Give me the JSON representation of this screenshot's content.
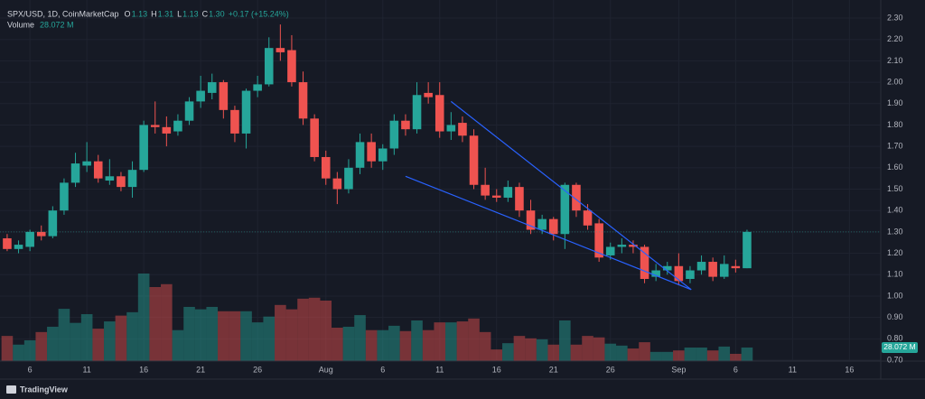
{
  "chart_data": {
    "type": "candlestick",
    "header": {
      "symbol": "SPX/USD, 1D, CoinMarketCap",
      "ohlc": [
        {
          "key": "O",
          "value": "1.13"
        },
        {
          "key": "H",
          "value": "1.31"
        },
        {
          "key": "L",
          "value": "1.13"
        },
        {
          "key": "C",
          "value": "1.30"
        }
      ],
      "change": "+0.17 (+15.24%)",
      "volume_title": "Volume"
    },
    "brand": "TradingView",
    "up_color": "#26a69a",
    "down_color": "#ef5350",
    "series": [
      {
        "name": "SPX/USD",
        "open": [
          1.27,
          1.22,
          1.23,
          1.3,
          1.28,
          1.4,
          1.53,
          1.61,
          1.63,
          1.54,
          1.56,
          1.51,
          1.59,
          1.8,
          1.79,
          1.77,
          1.82,
          1.91,
          1.95,
          2.0,
          1.87,
          1.76,
          1.96,
          1.99,
          2.16,
          2.15,
          2.0,
          1.83,
          1.65,
          1.55,
          1.5,
          1.6,
          1.72,
          1.63,
          1.69,
          1.82,
          1.78,
          1.95,
          1.94,
          1.77,
          1.81,
          1.75,
          1.52,
          1.47,
          1.46,
          1.51,
          1.4,
          1.31,
          1.36,
          1.29,
          1.52,
          1.4,
          1.34,
          1.19,
          1.23,
          1.24,
          1.23,
          1.09,
          1.12,
          1.14,
          1.08,
          1.12,
          1.16,
          1.09,
          1.14,
          1.13
        ],
        "high": [
          1.29,
          1.26,
          1.31,
          1.33,
          1.42,
          1.55,
          1.67,
          1.72,
          1.66,
          1.64,
          1.58,
          1.63,
          1.82,
          1.91,
          1.84,
          1.85,
          1.93,
          2.03,
          2.04,
          2.01,
          1.89,
          1.97,
          2.03,
          2.21,
          2.27,
          2.22,
          2.05,
          1.85,
          1.68,
          1.58,
          1.64,
          1.76,
          1.76,
          1.71,
          1.85,
          1.85,
          2.0,
          2.0,
          2.0,
          1.86,
          1.84,
          1.78,
          1.6,
          1.5,
          1.54,
          1.53,
          1.45,
          1.38,
          1.37,
          1.53,
          1.53,
          1.43,
          1.36,
          1.25,
          1.27,
          1.26,
          1.24,
          1.15,
          1.16,
          1.2,
          1.14,
          1.19,
          1.18,
          1.19,
          1.17,
          1.31
        ],
        "low": [
          1.21,
          1.2,
          1.21,
          1.26,
          1.27,
          1.38,
          1.51,
          1.58,
          1.53,
          1.52,
          1.49,
          1.46,
          1.58,
          1.76,
          1.7,
          1.75,
          1.8,
          1.88,
          1.92,
          1.83,
          1.72,
          1.69,
          1.93,
          1.98,
          2.1,
          1.98,
          1.8,
          1.63,
          1.52,
          1.43,
          1.48,
          1.57,
          1.6,
          1.59,
          1.66,
          1.75,
          1.76,
          1.9,
          1.74,
          1.73,
          1.72,
          1.5,
          1.45,
          1.44,
          1.44,
          1.37,
          1.29,
          1.29,
          1.26,
          1.22,
          1.37,
          1.31,
          1.16,
          1.17,
          1.2,
          1.2,
          1.06,
          1.07,
          1.1,
          1.05,
          1.06,
          1.1,
          1.07,
          1.08,
          1.11,
          1.13
        ],
        "close": [
          1.22,
          1.24,
          1.3,
          1.28,
          1.4,
          1.53,
          1.62,
          1.63,
          1.55,
          1.56,
          1.51,
          1.59,
          1.8,
          1.79,
          1.76,
          1.82,
          1.91,
          1.96,
          2.0,
          1.87,
          1.76,
          1.96,
          1.99,
          2.16,
          2.14,
          2.0,
          1.83,
          1.65,
          1.55,
          1.5,
          1.6,
          1.72,
          1.63,
          1.69,
          1.82,
          1.78,
          1.94,
          1.93,
          1.77,
          1.8,
          1.75,
          1.52,
          1.47,
          1.46,
          1.51,
          1.4,
          1.31,
          1.36,
          1.29,
          1.52,
          1.4,
          1.33,
          1.18,
          1.23,
          1.24,
          1.23,
          1.08,
          1.12,
          1.14,
          1.07,
          1.12,
          1.16,
          1.09,
          1.15,
          1.13,
          1.3
        ]
      }
    ],
    "volume": {
      "name": "Volume",
      "values": [
        52,
        34,
        43,
        60,
        71,
        108,
        79,
        97,
        67,
        82,
        94,
        101,
        181,
        153,
        159,
        64,
        112,
        107,
        112,
        103,
        103,
        103,
        80,
        92,
        116,
        107,
        129,
        131,
        125,
        69,
        71,
        95,
        64,
        64,
        73,
        62,
        84,
        64,
        80,
        80,
        82,
        88,
        60,
        24,
        37,
        52,
        47,
        45,
        34,
        84,
        34,
        52,
        49,
        36,
        32,
        26,
        39,
        19,
        19,
        22,
        28,
        28,
        22,
        30,
        15,
        28.072
      ],
      "last_label": "28.072 M",
      "vlim": [
        0,
        709
      ]
    },
    "drawings": [
      {
        "color": "#2962ff",
        "x": [
          39,
          60.1
        ],
        "y": [
          1.91,
          1.03
        ]
      },
      {
        "color": "#2962ff",
        "x": [
          35,
          60.1
        ],
        "y": [
          1.56,
          1.03
        ]
      }
    ],
    "xlim": [
      -0.63,
      76.75
    ],
    "xticks": [
      {
        "value": 2,
        "label": "6"
      },
      {
        "value": 7,
        "label": "11"
      },
      {
        "value": 12,
        "label": "16"
      },
      {
        "value": 17,
        "label": "21"
      },
      {
        "value": 22,
        "label": "26"
      },
      {
        "value": 28,
        "label": "Aug"
      },
      {
        "value": 33,
        "label": "6"
      },
      {
        "value": 38,
        "label": "11"
      },
      {
        "value": 43,
        "label": "16"
      },
      {
        "value": 48,
        "label": "21"
      },
      {
        "value": 53,
        "label": "26"
      },
      {
        "value": 59,
        "label": "Sep"
      },
      {
        "value": 64,
        "label": "6"
      },
      {
        "value": 69,
        "label": "11"
      },
      {
        "value": 74,
        "label": "16"
      }
    ],
    "ylim": [
      0.7,
      2.3
    ],
    "yticks": [
      {
        "value": 2.3,
        "label": "2.30"
      },
      {
        "value": 2.2,
        "label": "2.20"
      },
      {
        "value": 2.1,
        "label": "2.10"
      },
      {
        "value": 2.0,
        "label": "2.00"
      },
      {
        "value": 1.9,
        "label": "1.90"
      },
      {
        "value": 1.8,
        "label": "1.80"
      },
      {
        "value": 1.7,
        "label": "1.70"
      },
      {
        "value": 1.6,
        "label": "1.60"
      },
      {
        "value": 1.5,
        "label": "1.50"
      },
      {
        "value": 1.4,
        "label": "1.40"
      },
      {
        "value": 1.3,
        "label": "1.30"
      },
      {
        "value": 1.2,
        "label": "1.20"
      },
      {
        "value": 1.1,
        "label": "1.10"
      },
      {
        "value": 1.0,
        "label": "1.00"
      },
      {
        "value": 0.9,
        "label": "0.90"
      },
      {
        "value": 0.8,
        "label": "0.80"
      },
      {
        "value": 0.7,
        "label": "0.70"
      }
    ],
    "grid": true
  }
}
